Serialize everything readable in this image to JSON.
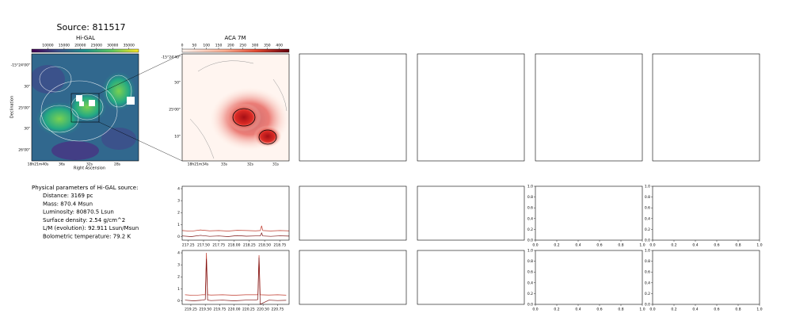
{
  "title": "Source: 811517",
  "higal": {
    "title": "Hi-GAL",
    "colorbar_lim": [
      5000,
      38000
    ],
    "colorbar_ticks": [
      10000,
      15000,
      20000,
      25000,
      30000,
      35000
    ],
    "xlabel": "Right Ascension",
    "ylabel": "Declination",
    "xticks": [
      "18h21m40s",
      "36s",
      "32s",
      "28s"
    ],
    "yticks": [
      "-15°24'00\"",
      "30\"",
      "25'00\"",
      "30\"",
      "26'00\""
    ]
  },
  "aca": {
    "title": "ACA 7M",
    "colorbar_lim": [
      0,
      440
    ],
    "colorbar_ticks": [
      0,
      50,
      100,
      150,
      200,
      250,
      300,
      350,
      400
    ],
    "xticks": [
      "18h21m34s",
      "33s",
      "32s",
      "31s"
    ],
    "yticks": [
      "-15°24'40\"",
      "50\"",
      "25'00\"",
      "10\""
    ]
  },
  "parameters": {
    "heading": "Physical parameters of Hi-GAL source:",
    "lines": [
      "Distance: 3169 pc",
      "Mass: 870.4 Msun",
      "Luminosity: 80870.5 Lsun",
      "Surface density: 2.54 g/cm^2",
      "L/M (evolution): 92.911 Lsun/Msun",
      "Bolometric temperature: 79.2 K"
    ]
  },
  "chart_data": [
    {
      "type": "line",
      "xlim": [
        217.15,
        218.9
      ],
      "ylim": [
        -0.3,
        4.2
      ],
      "xticks": [
        217.25,
        {
          "value": 217.5,
          "label": "217.50"
        },
        217.75,
        {
          "value": 218,
          "label": "218.00"
        },
        218.25,
        {
          "value": 218.5,
          "label": "218.50"
        },
        218.75
      ],
      "yticks": [
        0,
        1,
        2,
        3,
        4
      ],
      "x": [
        217.15,
        217.3,
        217.45,
        217.6,
        217.75,
        217.9,
        218.05,
        218.2,
        218.35,
        218.43,
        218.45,
        218.47,
        218.6,
        218.75,
        218.9
      ],
      "series": [
        {
          "color": "#c0392b",
          "values": [
            0.5,
            0.45,
            0.55,
            0.48,
            0.5,
            0.46,
            0.52,
            0.5,
            0.48,
            0.5,
            0.9,
            0.5,
            0.47,
            0.5,
            0.48
          ]
        },
        {
          "color": "#7b1010",
          "values": [
            0.05,
            0.0,
            0.1,
            0.02,
            0.05,
            0.0,
            0.08,
            0.03,
            0.05,
            0.05,
            0.3,
            0.05,
            0.02,
            0.06,
            0.04
          ]
        }
      ]
    },
    {
      "type": "line",
      "xlim": [
        219.1,
        220.95
      ],
      "ylim": [
        -0.3,
        4.2
      ],
      "xticks": [
        219.25,
        {
          "value": 219.5,
          "label": "219.50"
        },
        219.75,
        {
          "value": 220,
          "label": "220.00"
        },
        220.25,
        {
          "value": 220.5,
          "label": "220.50"
        },
        220.75
      ],
      "yticks": [
        0,
        1,
        2,
        3,
        4
      ],
      "x": [
        219.15,
        219.3,
        219.45,
        219.5,
        219.52,
        219.54,
        219.6,
        219.8,
        220.0,
        220.2,
        220.35,
        220.41,
        220.43,
        220.45,
        220.6,
        220.75,
        220.9
      ],
      "series": [
        {
          "color": "#c0392b",
          "values": [
            0.5,
            0.45,
            0.5,
            0.5,
            4.0,
            0.5,
            0.48,
            0.5,
            0.46,
            0.5,
            0.5,
            0.5,
            3.8,
            0.5,
            0.48,
            0.5,
            0.47
          ]
        },
        {
          "color": "#7b1010",
          "values": [
            0.05,
            0.0,
            0.05,
            0.1,
            3.5,
            0.05,
            0.02,
            0.05,
            0.0,
            0.05,
            0.05,
            0.1,
            3.6,
            -0.3,
            0.05,
            0.02,
            0.04
          ]
        }
      ]
    },
    {
      "type": "empty",
      "xlim": [
        0,
        1
      ],
      "ylim": [
        0,
        1
      ],
      "xticks": [
        {
          "value": 0,
          "label": "0.0"
        },
        0.2,
        0.4,
        0.6,
        0.8,
        {
          "value": 1,
          "label": "1.0"
        }
      ],
      "yticks": [
        {
          "value": 0,
          "label": "0.0"
        },
        0.2,
        0.4,
        0.6,
        0.8,
        {
          "value": 1,
          "label": "1.0"
        }
      ]
    },
    {
      "type": "empty",
      "xlim": [
        0,
        1
      ],
      "ylim": [
        0,
        1
      ],
      "xticks": [
        {
          "value": 0,
          "label": "0.0"
        },
        0.2,
        0.4,
        0.6,
        0.8,
        {
          "value": 1,
          "label": "1.0"
        }
      ],
      "yticks": [
        {
          "value": 0,
          "label": "0.0"
        },
        0.2,
        0.4,
        0.6,
        0.8,
        {
          "value": 1,
          "label": "1.0"
        }
      ]
    },
    {
      "type": "empty",
      "xlim": [
        0,
        1
      ],
      "ylim": [
        0,
        1
      ],
      "xticks": [
        {
          "value": 0,
          "label": "0.0"
        },
        0.2,
        0.4,
        0.6,
        0.8,
        {
          "value": 1,
          "label": "1.0"
        }
      ],
      "yticks": [
        {
          "value": 0,
          "label": "0.0"
        },
        0.2,
        0.4,
        0.6,
        0.8,
        {
          "value": 1,
          "label": "1.0"
        }
      ]
    },
    {
      "type": "empty",
      "xlim": [
        0,
        1
      ],
      "ylim": [
        0,
        1
      ],
      "xticks": [
        {
          "value": 0,
          "label": "0.0"
        },
        0.2,
        0.4,
        0.6,
        0.8,
        {
          "value": 1,
          "label": "1.0"
        }
      ],
      "yticks": [
        {
          "value": 0,
          "label": "0.0"
        },
        0.2,
        0.4,
        0.6,
        0.8,
        {
          "value": 1,
          "label": "1.0"
        }
      ]
    }
  ]
}
